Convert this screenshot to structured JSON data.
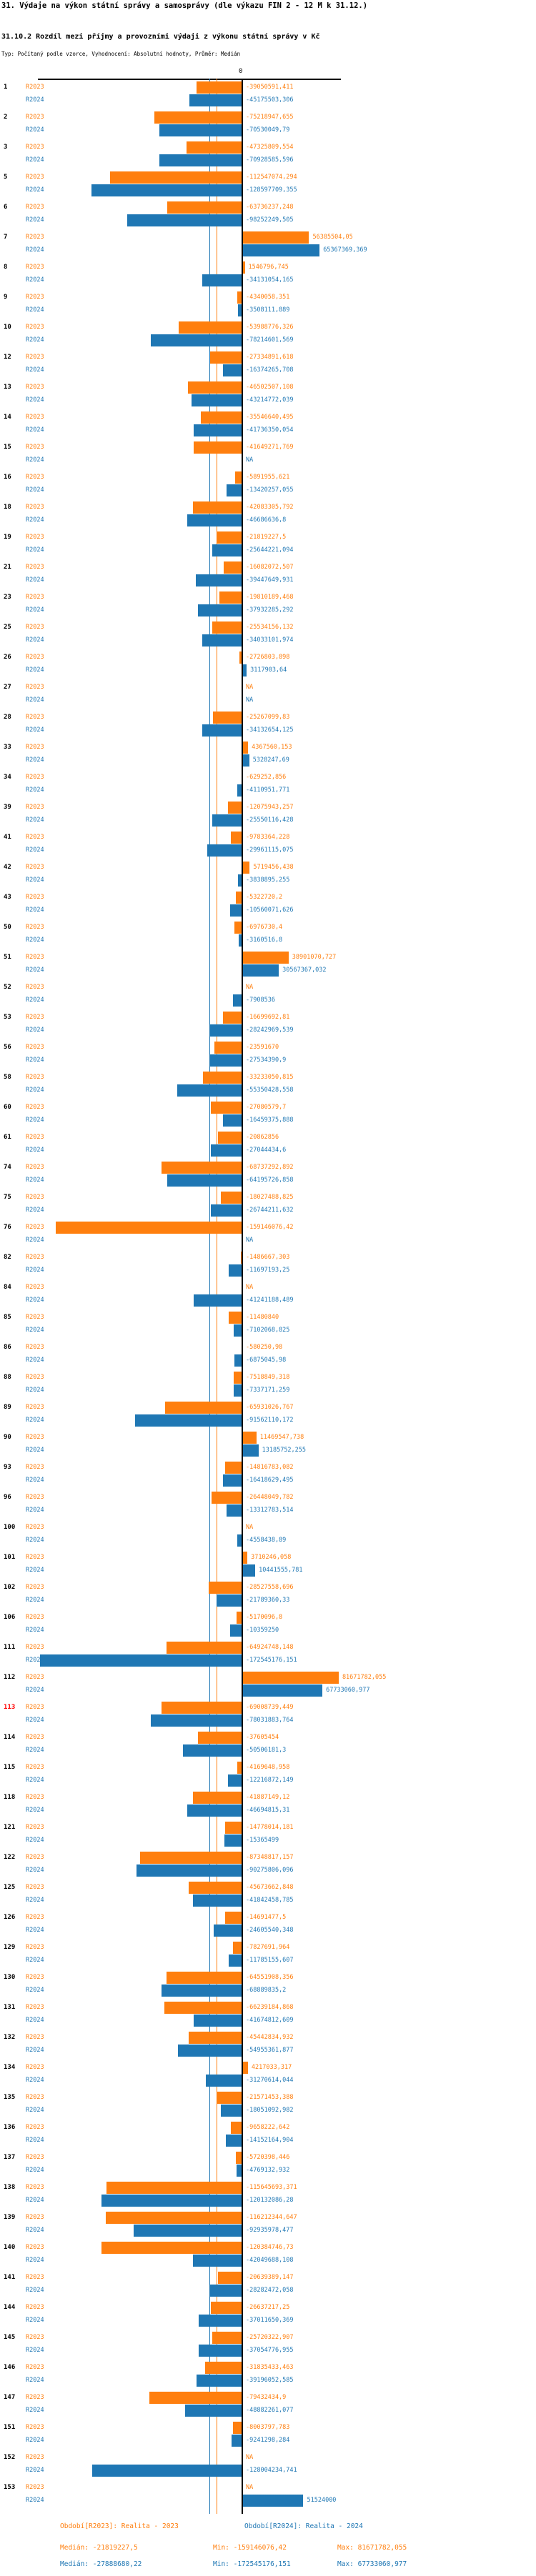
{
  "title": "31. Výdaje na výkon státní správy a samosprávy (dle výkazu FIN 2 - 12 M k 31.12.)",
  "subtitle": "31.10.2 Rozdíl mezi příjmy a provozními výdaji z výkonu státní správy v Kč",
  "meta_line": "Typ: Počítaný podle vzorce, Vyhodnocení: Absolutní hodnoty, Průměr: Medián",
  "chart_data": {
    "type": "bar",
    "orientation": "horizontal-diverging",
    "value_unit": "Kč",
    "decimal_separator": ",",
    "na_label": "NA",
    "axis": {
      "zero_label": "0"
    },
    "grid": "zero-line and per-series median reference lines",
    "legend_position": "bottom",
    "highlighted_categories": [
      "113"
    ],
    "categories": [
      "1",
      "2",
      "3",
      "5",
      "6",
      "7",
      "8",
      "9",
      "10",
      "12",
      "13",
      "14",
      "15",
      "16",
      "18",
      "19",
      "21",
      "23",
      "25",
      "26",
      "27",
      "28",
      "33",
      "34",
      "39",
      "41",
      "42",
      "43",
      "50",
      "51",
      "52",
      "53",
      "56",
      "58",
      "60",
      "61",
      "74",
      "75",
      "76",
      "82",
      "84",
      "85",
      "86",
      "88",
      "89",
      "90",
      "93",
      "96",
      "100",
      "101",
      "102",
      "106",
      "111",
      "112",
      "113",
      "114",
      "115",
      "118",
      "121",
      "122",
      "125",
      "126",
      "129",
      "130",
      "131",
      "132",
      "134",
      "135",
      "136",
      "137",
      "138",
      "139",
      "140",
      "141",
      "144",
      "145",
      "146",
      "147",
      "151",
      "152",
      "153"
    ],
    "series": [
      {
        "id": "R2023",
        "label": "R2023",
        "color": "#ff7f0e",
        "period_label": "Období[R2023]: Realita - 2023",
        "median": "-21819227,5",
        "stats": {
          "median_text": "Medián: -21819227,5",
          "min_text": "Min: -159146076,42",
          "max_text": "Max: 81671782,055"
        },
        "values": [
          "-39050591,411",
          "-75218947,655",
          "-47325809,554",
          "-112547074,294",
          "-63736237,248",
          "56385504,05",
          "1546796,745",
          "-4340058,351",
          "-53988776,326",
          "-27334891,618",
          "-46502507,108",
          "-35546640,495",
          "-41649271,769",
          "-5891955,621",
          "-42083305,792",
          "-21819227,5",
          "-16082072,507",
          "-19810189,468",
          "-25534156,132",
          "-2726803,898",
          "NA",
          "-25267099,83",
          "4367560,153",
          "-629252,856",
          "-12075943,257",
          "-9783364,228",
          "5719456,438",
          "-5322720,2",
          "-6976730,4",
          "38901070,727",
          "NA",
          "-16699692,81",
          "-23591670",
          "-33233050,815",
          "-27080579,7",
          "-20862856",
          "-68737292,892",
          "-18027488,825",
          "-159146076,42",
          "-1486667,303",
          "NA",
          "-11480840",
          "-580250,98",
          "-7518849,318",
          "-65931026,767",
          "11469547,738",
          "-14816783,082",
          "-26448049,782",
          "NA",
          "3710246,058",
          "-28527558,696",
          "-5170096,8",
          "-64924748,148",
          "81671782,055",
          "-69008739,449",
          "-37605454",
          "-4169648,958",
          "-41887149,12",
          "-14778014,181",
          "-87348817,157",
          "-45673662,848",
          "-14691477,5",
          "-7827691,964",
          "-64551908,356",
          "-66239184,868",
          "-45442834,932",
          "4217033,317",
          "-21571453,388",
          "-9658222,642",
          "-5720398,446",
          "-115645693,371",
          "-116212344,647",
          "-120384746,73",
          "-20639389,147",
          "-26637217,25",
          "-25720322,907",
          "-31835433,463",
          "-79432434,9",
          "-8003797,783",
          "NA",
          "NA"
        ]
      },
      {
        "id": "R2024",
        "label": "R2024",
        "color": "#1f77b4",
        "period_label": "Období[R2024]: Realita - 2024",
        "median": "-27888680,22",
        "stats": {
          "median_text": "Medián: -27888680,22",
          "min_text": "Min: -172545176,151",
          "max_text": "Max: 67733060,977"
        },
        "values": [
          "-45175503,306",
          "-70530049,79",
          "-70928585,596",
          "-128597709,355",
          "-98252249,505",
          "65367369,369",
          "-34131054,165",
          "-3508111,889",
          "-78214601,569",
          "-16374265,708",
          "-43214772,039",
          "-41736350,054",
          "NA",
          "-13420257,055",
          "-46686636,8",
          "-25644221,094",
          "-39447649,931",
          "-37932285,292",
          "-34033101,974",
          "3117903,64",
          "NA",
          "-34132654,125",
          "5328247,69",
          "-4110951,771",
          "-25550116,428",
          "-29961115,075",
          "-3838895,255",
          "-10560071,626",
          "-3160516,8",
          "30567367,032",
          "-7908536",
          "-28242969,539",
          "-27534390,9",
          "-55350428,558",
          "-16459375,888",
          "-27044434,6",
          "-64195726,858",
          "-26744211,632",
          "NA",
          "-11697193,25",
          "-41241188,489",
          "-7102068,825",
          "-6875045,98",
          "-7337171,259",
          "-91562110,172",
          "13185752,255",
          "-16418629,495",
          "-13312783,514",
          "-4558438,89",
          "10441555,781",
          "-21789360,33",
          "-10359250",
          "-172545176,151",
          "67733060,977",
          "-78031883,764",
          "-50506181,3",
          "-12216872,149",
          "-46694815,31",
          "-15365499",
          "-90275806,096",
          "-41842458,785",
          "-24605540,348",
          "-11785155,607",
          "-68889835,2",
          "-41674812,609",
          "-54955361,877",
          "-31270614,044",
          "-18051092,982",
          "-14152164,904",
          "-4769132,932",
          "-120132086,28",
          "-92935978,477",
          "-42049688,108",
          "-28282472,058",
          "-37011650,369",
          "-37054776,955",
          "-39196052,585",
          "-48882261,077",
          "-9241298,284",
          "-128004234,741",
          "51524000"
        ]
      }
    ]
  }
}
